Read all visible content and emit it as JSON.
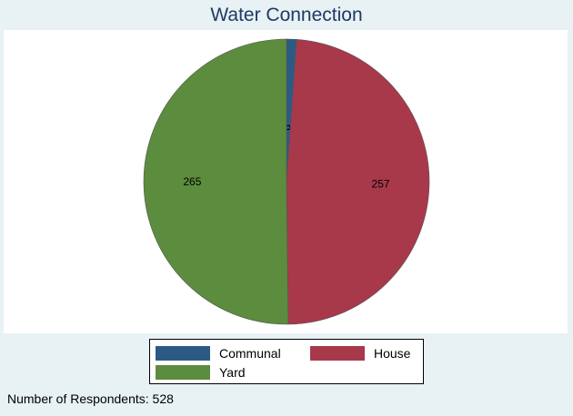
{
  "chart_data": {
    "type": "pie",
    "title": "Water Connection",
    "slices": [
      {
        "label": "Communal",
        "value": 6,
        "color": "#2d5a85"
      },
      {
        "label": "House",
        "value": 257,
        "color": "#a8394a"
      },
      {
        "label": "Yard",
        "value": 265,
        "color": "#5c8c3d"
      }
    ],
    "legend_position": "bottom"
  },
  "note": "Number of Respondents: 528"
}
